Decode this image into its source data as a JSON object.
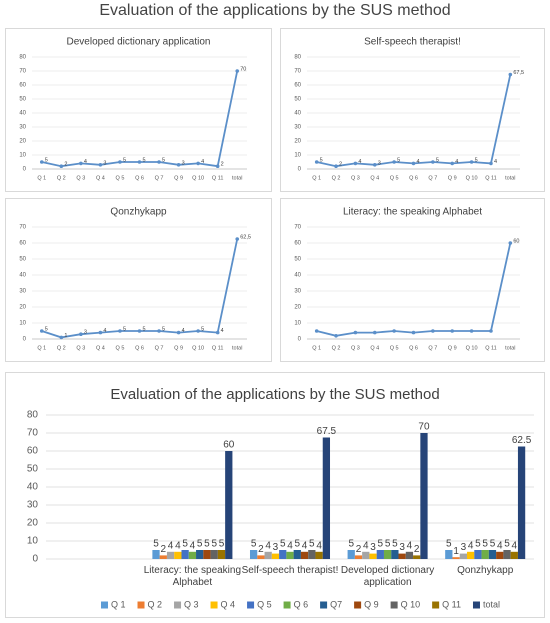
{
  "title": "Evaluation of the applications by the SUS method",
  "chart_data": [
    {
      "type": "line",
      "title": "Developed dictionary application",
      "categories": [
        "Q 1",
        "Q 2",
        "Q 3",
        "Q 4",
        "Q 5",
        "Q 6",
        "Q 7",
        "Q 9",
        "Q 10",
        "Q 11",
        "total"
      ],
      "values": [
        5,
        2,
        4,
        3,
        5,
        5,
        5,
        3,
        4,
        2,
        70
      ],
      "value_labels": [
        "5",
        "2",
        "4",
        "3",
        "5",
        "5",
        "5",
        "3",
        "4",
        "2",
        "70"
      ],
      "color": "#5b8fc9",
      "ylim": [
        0,
        80
      ],
      "yticks": [
        0,
        10,
        20,
        30,
        40,
        50,
        60,
        70,
        80
      ],
      "grid": true
    },
    {
      "type": "line",
      "title": "Self-speech therapist!",
      "categories": [
        "Q 1",
        "Q 2",
        "Q 3",
        "Q 4",
        "Q 5",
        "Q 6",
        "Q 7",
        "Q 9",
        "Q 10",
        "Q 11",
        "total"
      ],
      "values": [
        5,
        2,
        4,
        3,
        5,
        4,
        5,
        4,
        5,
        4,
        67.5
      ],
      "value_labels": [
        "5",
        "2",
        "4",
        "3",
        "5",
        "4",
        "5",
        "4",
        "5",
        "4",
        "67,5"
      ],
      "color": "#5b8fc9",
      "ylim": [
        0,
        80
      ],
      "yticks": [
        0,
        10,
        20,
        30,
        40,
        50,
        60,
        70,
        80
      ],
      "grid": true
    },
    {
      "type": "line",
      "title": "Qonzhykapp",
      "categories": [
        "Q 1",
        "Q 2",
        "Q 3",
        "Q 4",
        "Q 5",
        "Q 6",
        "Q 7",
        "Q 9",
        "Q 10",
        "Q 11",
        "total"
      ],
      "values": [
        5,
        1,
        3,
        4,
        5,
        5,
        5,
        4,
        5,
        4,
        62.5
      ],
      "value_labels": [
        "5",
        "1",
        "3",
        "4",
        "5",
        "5",
        "5",
        "4",
        "5",
        "4",
        "62,5"
      ],
      "color": "#5b8fc9",
      "ylim": [
        0,
        70
      ],
      "yticks": [
        0,
        10,
        20,
        30,
        40,
        50,
        60,
        70
      ],
      "grid": true
    },
    {
      "type": "line",
      "title": "Literacy: the speaking Alphabet",
      "categories": [
        "Q 1",
        "Q 2",
        "Q 3",
        "Q 4",
        "Q 5",
        "Q 6",
        "Q 7",
        "Q 9",
        "Q 10",
        "Q 11",
        "total"
      ],
      "values": [
        5,
        2,
        4,
        4,
        5,
        4,
        5,
        5,
        5,
        5,
        60
      ],
      "value_labels": [
        null,
        null,
        null,
        null,
        null,
        null,
        null,
        null,
        null,
        null,
        "60"
      ],
      "color": "#5b8fc9",
      "ylim": [
        0,
        70
      ],
      "yticks": [
        0,
        10,
        20,
        30,
        40,
        50,
        60,
        70
      ],
      "grid": true
    },
    {
      "type": "bar",
      "title": "Evaluation of the applications by the SUS method",
      "categories": [
        null,
        "Literacy: the speaking Alphabet",
        "Self-speech therapist!",
        "Developed dictionary application",
        "Qonzhykapp"
      ],
      "ylim": [
        0,
        80
      ],
      "yticks": [
        0,
        10,
        20,
        30,
        40,
        50,
        60,
        70,
        80
      ],
      "grid": true,
      "legend": "bottom",
      "series": [
        {
          "name": "Q 1",
          "color": "#5b9bd5",
          "values": [
            null,
            5,
            5,
            5,
            5
          ]
        },
        {
          "name": "Q 2",
          "color": "#ed7d31",
          "values": [
            null,
            2,
            2,
            2,
            1
          ]
        },
        {
          "name": "Q 3",
          "color": "#a5a5a5",
          "values": [
            null,
            4,
            4,
            4,
            3
          ]
        },
        {
          "name": "Q 4",
          "color": "#ffc000",
          "values": [
            null,
            4,
            3,
            3,
            4
          ]
        },
        {
          "name": "Q 5",
          "color": "#4472c4",
          "values": [
            null,
            5,
            5,
            5,
            5
          ]
        },
        {
          "name": "Q 6",
          "color": "#70ad47",
          "values": [
            null,
            4,
            4,
            5,
            5
          ]
        },
        {
          "name": "Q7",
          "color": "#255e91",
          "values": [
            null,
            5,
            5,
            5,
            5
          ]
        },
        {
          "name": "Q 9",
          "color": "#9e480e",
          "values": [
            null,
            5,
            4,
            3,
            4
          ]
        },
        {
          "name": "Q 10",
          "color": "#636363",
          "values": [
            null,
            5,
            5,
            4,
            5
          ]
        },
        {
          "name": "Q 11",
          "color": "#997300",
          "values": [
            null,
            5,
            4,
            2,
            4
          ]
        },
        {
          "name": "total",
          "color": "#264478",
          "values": [
            null,
            60,
            67.5,
            70,
            62.5
          ]
        }
      ]
    }
  ]
}
